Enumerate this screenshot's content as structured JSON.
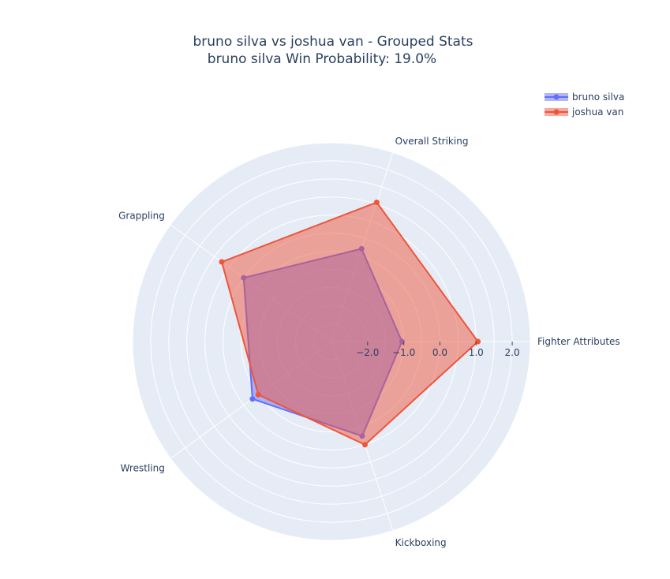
{
  "chart_data": {
    "type": "radar",
    "title": "bruno silva vs joshua van - Grouped Stats",
    "subtitle": "bruno silva Win Probability: 19.0%",
    "categories": [
      "Fighter Attributes",
      "Overall Striking",
      "Grappling",
      "Wrestling",
      "Kickboxing"
    ],
    "radial_range": [
      -3,
      2.5
    ],
    "radial_ticks": [
      -2,
      -1,
      0,
      1,
      2
    ],
    "radial_tick_labels": [
      "−2.0",
      "−1.0",
      "0.0",
      "1.0",
      "2.0"
    ],
    "grid": true,
    "legend_position": "top-right",
    "series": [
      {
        "name": "bruno silva",
        "values": [
          -1.05,
          -0.3,
          0.0,
          -0.3,
          -0.25
        ],
        "color": "#636efa"
      },
      {
        "name": "joshua van",
        "values": [
          1.05,
          1.05,
          0.75,
          -0.5,
          0.0
        ],
        "color": "#ef553b"
      }
    ]
  }
}
